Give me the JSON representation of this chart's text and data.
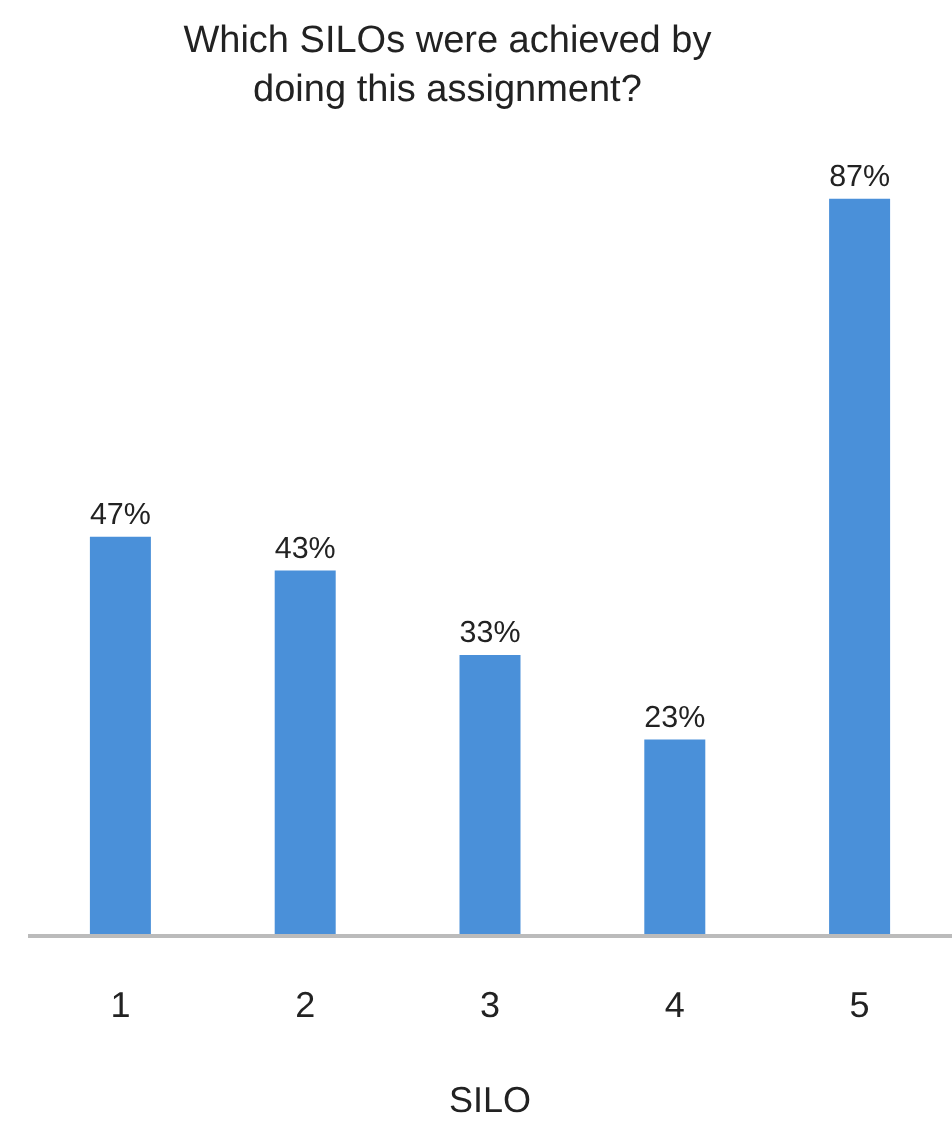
{
  "chart_data": {
    "type": "bar",
    "title": "Which SILOs were achieved by\ndoing this assignment?",
    "xlabel": "SILO",
    "categories": [
      "1",
      "2",
      "3",
      "4",
      "5"
    ],
    "values": [
      47,
      43,
      33,
      23,
      87
    ],
    "value_labels": [
      "47%",
      "43%",
      "33%",
      "23%",
      "87%"
    ],
    "color": "#4a90d9",
    "grid": false,
    "legend": false
  }
}
